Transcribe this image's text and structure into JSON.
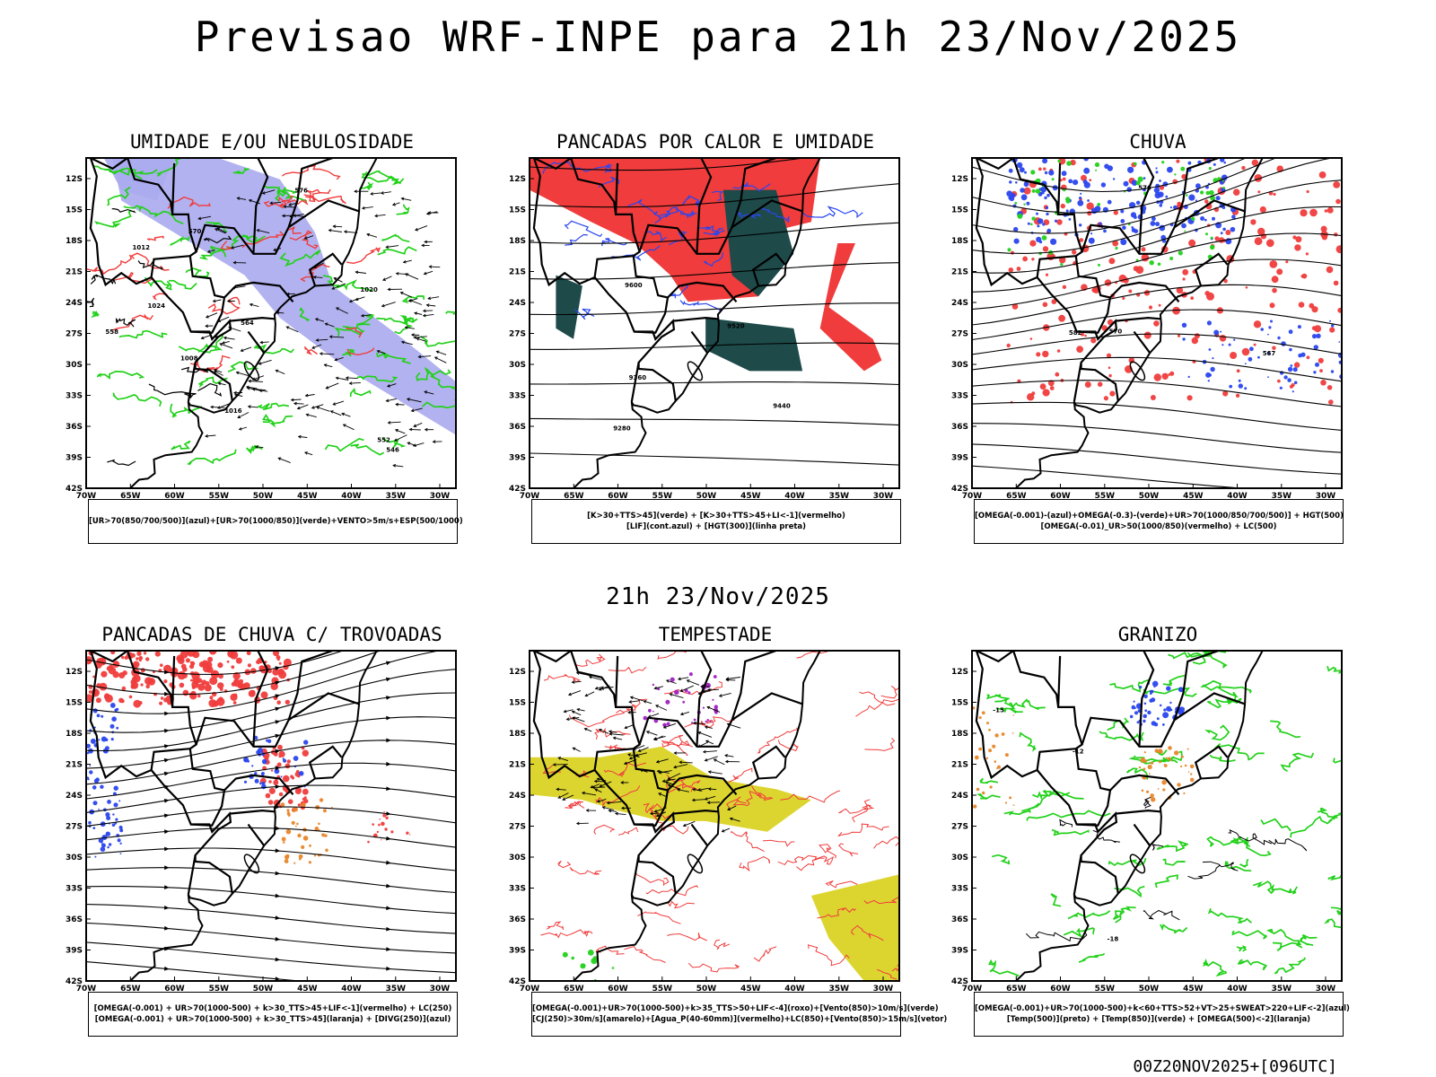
{
  "header": {
    "title": "Previsao WRF-INPE  para 21h 23/Nov/2025",
    "mid_title": "21h 23/Nov/2025",
    "footer": "00Z20NOV2025+[096UTC]"
  },
  "axes": {
    "lat_labels": [
      "12S",
      "15S",
      "18S",
      "21S",
      "24S",
      "27S",
      "30S",
      "33S",
      "36S",
      "39S",
      "42S"
    ],
    "lon_labels": [
      "70W",
      "65W",
      "60W",
      "55W",
      "50W",
      "45W",
      "40W",
      "35W",
      "30W"
    ]
  },
  "colors": {
    "red": "#f03c3c",
    "green": "#22d11a",
    "blue": "#2a46ee",
    "lavender": "#aaaaee",
    "yellow": "#dcd530",
    "orange": "#e8862a",
    "purple": "#a020c0",
    "darkteal": "#1e4a4a"
  },
  "panels": [
    {
      "id": "umidade",
      "title": "UMIDADE E/OU NEBULOSIDADE",
      "legend": [
        "[UR>70(850/700/500)](azul)+[UR>70(1000/850)](verde)+VENTO>5m/s+ESP(500/1000)"
      ],
      "contour_labels": [
        "1008",
        "1012",
        "1016",
        "1020",
        "1024",
        "576",
        "570",
        "564",
        "558",
        "552",
        "546"
      ]
    },
    {
      "id": "pancadas_calor",
      "title": "PANCADAS POR CALOR E UMIDADE",
      "legend": [
        "[K>30+TTS>45](verde)  +  [K>30+TTS>45+LI<-1](vermelho)",
        "[LIF](cont.azul)  +  [HGT(300)](linha preta)"
      ],
      "contour_labels": [
        "9600",
        "9520",
        "9440",
        "9360",
        "9280"
      ]
    },
    {
      "id": "chuva",
      "title": "CHUVA",
      "legend": [
        "[OMEGA(-0.001)-(azul)+OMEGA(-0.3)-(verde)+UR>70(1000/850/700/500)]  +  HGT(500)",
        "[OMEGA(-0.01)_UR>50(1000/850)(vermelho)  +  LC(500)"
      ],
      "contour_labels": [
        "582",
        "576",
        "570",
        "567"
      ]
    },
    {
      "id": "pancadas_trovoadas",
      "title": "PANCADAS DE CHUVA C/ TROVOADAS",
      "legend": [
        "[OMEGA(-0.001)  +  UR>70(1000-500)  +  k>30_TTS>45+LIF<-1](vermelho)  +  LC(250)",
        "[OMEGA(-0.001)  +  UR>70(1000-500)  +  k>30_TTS>45](laranja)  +  [DIVG(250)](azul)"
      ],
      "contour_labels": []
    },
    {
      "id": "tempestade",
      "title": "TEMPESTADE",
      "legend": [
        "[OMEGA(-0.001)+UR>70(1000-500)+k>35_TTS>50+LIF<-4](roxo)+[Vento(850)>10m/s](verde)",
        "[CJ(250)>30m/s](amarelo)+[Agua_P(40-60mm)](vermelho)+LC(850)+[Vento(850)>15m/s](vetor)"
      ],
      "contour_labels": []
    },
    {
      "id": "granizo",
      "title": "GRANIZO",
      "legend": [
        "[OMEGA(-0.001)+UR>70(1000-500)+k<60+TTS>52+VT>25+SWEAT>220+LIF<-2](azul)",
        "[Temp(500)](preto)  +  [Temp(850)](verde)  +  [OMEGA(500)<-2](laranja)"
      ],
      "contour_labels": [
        "-12",
        "-15",
        "-18"
      ]
    }
  ]
}
